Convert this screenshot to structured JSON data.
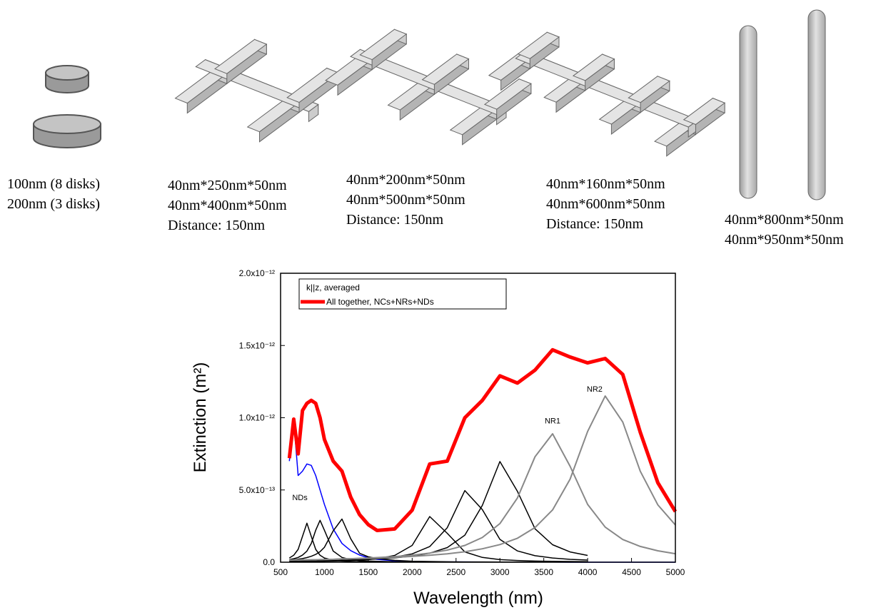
{
  "structures": [
    {
      "lines": [
        "100nm (8 disks)",
        "200nm (3 disks)"
      ]
    },
    {
      "lines": [
        "40nm*250nm*50nm",
        "40nm*400nm*50nm",
        "Distance: 150nm"
      ]
    },
    {
      "lines": [
        "40nm*200nm*50nm",
        "40nm*500nm*50nm",
        "Distance: 150nm"
      ]
    },
    {
      "lines": [
        "40nm*160nm*50nm",
        "40nm*600nm*50nm",
        "Distance: 150nm"
      ]
    },
    {
      "lines": [
        "40nm*800nm*50nm",
        "40nm*950nm*50nm"
      ]
    }
  ],
  "chart_data": {
    "type": "line",
    "x_label": "Wavelength (nm)",
    "y_label": "Extinction (m²)",
    "xlim": [
      500,
      5000
    ],
    "xticks": [
      500,
      1000,
      1500,
      2000,
      2500,
      3000,
      3500,
      4000,
      4500,
      5000
    ],
    "ylim": [
      0,
      2e-12
    ],
    "yticks": [
      {
        "value": 0,
        "label": "0.0"
      },
      {
        "value": 5e-13,
        "label": "5.0x10⁻¹³"
      },
      {
        "value": 1e-12,
        "label": "1.0x10⁻¹²"
      },
      {
        "value": 1.5e-12,
        "label": "1.5x10⁻¹²"
      },
      {
        "value": 2e-12,
        "label": "2.0x10⁻¹²"
      }
    ],
    "grid": false,
    "legend": "upper left",
    "legend_title": "k||z, averaged",
    "x": [
      600,
      650,
      700,
      750,
      800,
      850,
      900,
      950,
      1000,
      1100,
      1200,
      1300,
      1400,
      1500,
      1600,
      1800,
      2000,
      2200,
      2400,
      2600,
      2800,
      3000,
      3200,
      3400,
      3600,
      3800,
      4000,
      4200,
      4400,
      4600,
      4800,
      5000
    ],
    "series": [
      {
        "name": "All together, NCs+NRs+NDs",
        "color": "#ff0000",
        "width": 5,
        "values": [
          7.2e-13,
          9.9e-13,
          7.5e-13,
          1.05e-12,
          1.1e-12,
          1.12e-12,
          1.1e-12,
          1e-12,
          8.5e-13,
          7e-13,
          6.3e-13,
          4.5e-13,
          3.3e-13,
          2.6e-13,
          2.2e-13,
          2.3e-13,
          3.6e-13,
          6.8e-13,
          7e-13,
          1e-12,
          1.12e-12,
          1.29e-12,
          1.24e-12,
          1.33e-12,
          1.47e-12,
          1.42e-12,
          1.38e-12,
          1.41e-12,
          1.3e-12,
          9e-13,
          5.5e-13,
          3.5e-13
        ]
      },
      {
        "color": "#0000ff",
        "width": 1.5,
        "values": [
          7e-13,
          9.8e-13,
          6e-13,
          6.3e-13,
          6.8e-13,
          6.7e-13,
          6e-13,
          5e-13,
          4e-13,
          2.3e-13,
          1.3e-13,
          8e-14,
          5e-14,
          3e-14,
          2e-14,
          1e-14,
          5e-15,
          3e-15,
          2e-15,
          2e-15,
          1e-15,
          1e-15,
          1e-15,
          1e-15,
          1e-15,
          0,
          0,
          0,
          0,
          0,
          0,
          0
        ]
      },
      {
        "color": "#000000",
        "width": 1.5,
        "values": [
          2.9e-14,
          4.8e-14,
          8.9e-14,
          1.79e-13,
          2.7e-13,
          1.79e-13,
          8.9e-14,
          4.8e-14,
          2.9e-14,
          1.4e-14,
          8e-15,
          5e-15,
          4e-15,
          3e-15,
          2e-15,
          1e-15,
          1e-15,
          1e-15,
          1e-15,
          1e-15,
          1e-15,
          1e-15,
          1e-15,
          1e-15,
          1e-15,
          1e-15,
          1e-15,
          null,
          null,
          null,
          null,
          null
        ]
      },
      {
        "color": "#000000",
        "width": 1.5,
        "values": [
          1.8e-14,
          2.4e-14,
          3.3e-14,
          4.9e-14,
          7.7e-14,
          1.3e-13,
          2.21e-13,
          2.9e-13,
          2.21e-13,
          7.7e-14,
          3.3e-14,
          1.8e-14,
          1.1e-14,
          8e-15,
          6e-15,
          3e-15,
          2e-15,
          1e-15,
          1e-15,
          1e-15,
          1e-15,
          1e-15,
          1e-15,
          1e-15,
          1e-15,
          1e-15,
          1e-15,
          null,
          null,
          null,
          null,
          null
        ]
      },
      {
        "color": "#000000",
        "width": 1.5,
        "values": [
          1.4e-14,
          1.7e-14,
          2.1e-14,
          2.5e-14,
          3.2e-14,
          4.1e-14,
          5.4e-14,
          7.3e-14,
          1.03e-13,
          2.17e-13,
          2.99e-13,
          1.62e-13,
          6.2e-14,
          3.7e-14,
          2.6e-14,
          1.3e-14,
          7e-15,
          5e-15,
          3e-15,
          2e-15,
          2e-15,
          1e-15,
          1e-15,
          1e-15,
          1e-15,
          1e-15,
          1e-15,
          null,
          null,
          null,
          null,
          null
        ]
      },
      {
        "color": "#000000",
        "width": 1.5,
        "values": [
          3e-15,
          3e-15,
          3e-15,
          4e-15,
          4e-15,
          4e-15,
          5e-15,
          5e-15,
          7e-15,
          8e-15,
          1e-14,
          1.2e-14,
          1.5e-14,
          1.8e-14,
          2.4e-14,
          4.7e-14,
          1.16e-13,
          3.16e-13,
          2e-13,
          7.1e-14,
          3.3e-14,
          1.8e-14,
          1.2e-14,
          8e-15,
          6e-15,
          5e-15,
          4e-15,
          null,
          null,
          null,
          null,
          null
        ]
      },
      {
        "color": "#000000",
        "width": 1.5,
        "values": [
          6e-15,
          6e-15,
          7e-15,
          7e-15,
          7e-15,
          8e-15,
          8e-15,
          9e-15,
          1e-14,
          1.1e-14,
          1.2e-14,
          1.4e-14,
          1.7e-14,
          2e-14,
          2.4e-14,
          3.5e-14,
          5.8e-14,
          1.08e-13,
          2.39e-13,
          4.96e-13,
          3.64e-13,
          1.58e-13,
          7.8e-14,
          4.5e-14,
          2.9e-14,
          2e-14,
          1.5e-14,
          null,
          null,
          null,
          null,
          null
        ]
      },
      {
        "color": "#000000",
        "width": 1.5,
        "values": [
          8e-15,
          8e-15,
          8e-15,
          9e-15,
          9e-15,
          9e-15,
          1e-14,
          1e-14,
          1.1e-14,
          1.2e-14,
          1.4e-14,
          1.6e-14,
          1.8e-14,
          2e-14,
          2.3e-14,
          3e-14,
          4.2e-14,
          6.2e-14,
          1.01e-13,
          1.87e-13,
          3.93e-13,
          6.97e-13,
          4.9e-13,
          2.31e-13,
          1.21e-13,
          7.1e-14,
          4.7e-14,
          null,
          null,
          null,
          null,
          null
        ]
      },
      {
        "color": "#888888",
        "width": 2,
        "values": [
          1.4e-14,
          1.5e-14,
          1.5e-14,
          1.6e-14,
          1.6e-14,
          1.7e-14,
          1.7e-14,
          1.8e-14,
          1.9e-14,
          2e-14,
          2.2e-14,
          2.4e-14,
          2.7e-14,
          2.9e-14,
          3.2e-14,
          3.9e-14,
          4.9e-14,
          6.3e-14,
          8.4e-14,
          1.16e-13,
          1.71e-13,
          2.67e-13,
          4.45e-13,
          7.3e-13,
          8.89e-13,
          6.64e-13,
          4e-13,
          2.43e-13,
          1.57e-13,
          1.09e-13,
          7.9e-14,
          5.9e-14
        ]
      },
      {
        "color": "#888888",
        "width": 2,
        "values": [
          1.5e-14,
          1.5e-14,
          1.6e-14,
          1.6e-14,
          1.6e-14,
          1.7e-14,
          1.7e-14,
          1.8e-14,
          1.9e-14,
          2e-14,
          2.3e-14,
          2.4e-14,
          2.5e-14,
          2.7e-14,
          2.8e-14,
          3.4e-14,
          4e-14,
          4.8e-14,
          5.8e-14,
          7.2e-14,
          9.3e-14,
          1.22e-13,
          1.66e-13,
          2.4e-13,
          3.62e-13,
          5.75e-13,
          9.05e-13,
          1.15e-12,
          9.7e-13,
          6.3e-13,
          3.97e-13,
          2.58e-13
        ]
      }
    ],
    "annotations": [
      {
        "text": "NDs",
        "x": 720,
        "y": 4.3e-13
      },
      {
        "text": "NR1",
        "x": 3600,
        "y": 9.6e-13
      },
      {
        "text": "NR2",
        "x": 4080,
        "y": 1.18e-12
      }
    ]
  }
}
